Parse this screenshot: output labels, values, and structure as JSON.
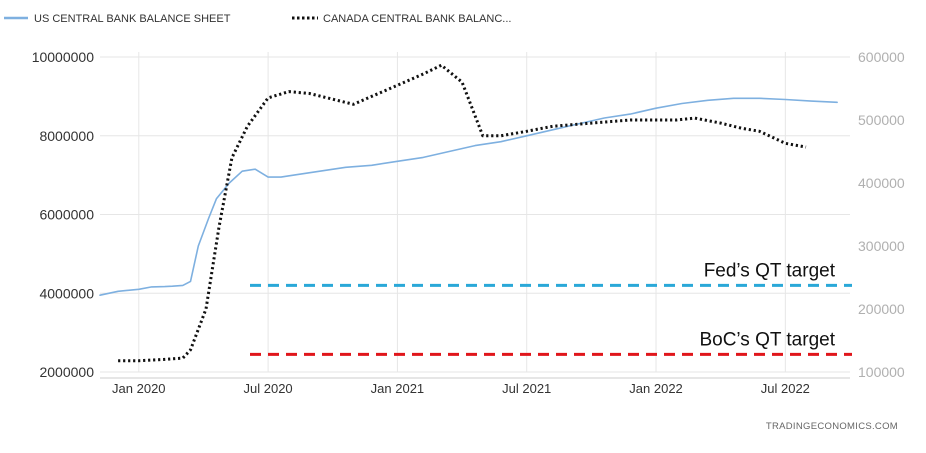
{
  "chart_data": {
    "type": "line",
    "title": "",
    "legend": [
      "US CENTRAL BANK BALANCE SHEET",
      "CANADA CENTRAL BANK BALANC..."
    ],
    "legend_position": "top-left",
    "source": "TRADINGECONOMICS.COM",
    "x_tick_labels": [
      "Jan 2020",
      "Jul 2020",
      "Jan 2021",
      "Jul 2021",
      "Jan 2022",
      "Jul 2022"
    ],
    "x_range": [
      2019.85,
      2022.75
    ],
    "y_left": {
      "ylim": [
        2000000,
        10000000
      ],
      "ticks": [
        "2000000",
        "4000000",
        "6000000",
        "8000000",
        "10000000"
      ]
    },
    "y_right": {
      "ylim": [
        100000,
        600000
      ],
      "ticks": [
        "100000",
        "200000",
        "300000",
        "400000",
        "500000",
        "600000"
      ]
    },
    "grid": true,
    "series": [
      {
        "name": "US CENTRAL BANK BALANCE SHEET",
        "axis": "left",
        "color": "#7eb0e0",
        "style": "solid",
        "x": [
          2019.85,
          2019.92,
          2020.0,
          2020.05,
          2020.1,
          2020.13,
          2020.17,
          2020.2,
          2020.23,
          2020.27,
          2020.3,
          2020.35,
          2020.4,
          2020.45,
          2020.5,
          2020.55,
          2020.6,
          2020.7,
          2020.8,
          2020.9,
          2021.0,
          2021.1,
          2021.2,
          2021.3,
          2021.4,
          2021.5,
          2021.6,
          2021.7,
          2021.8,
          2021.9,
          2022.0,
          2022.1,
          2022.2,
          2022.3,
          2022.4,
          2022.5,
          2022.6,
          2022.7
        ],
        "y": [
          3950000,
          4050000,
          4100000,
          4160000,
          4170000,
          4180000,
          4200000,
          4300000,
          5200000,
          5900000,
          6400000,
          6800000,
          7100000,
          7150000,
          6950000,
          6950000,
          7000000,
          7100000,
          7200000,
          7250000,
          7350000,
          7450000,
          7600000,
          7750000,
          7850000,
          8000000,
          8150000,
          8300000,
          8450000,
          8550000,
          8700000,
          8820000,
          8900000,
          8950000,
          8950000,
          8920000,
          8880000,
          8850000
        ]
      },
      {
        "name": "CANADA CENTRAL BANK BALANC...",
        "axis": "right",
        "color": "#111111",
        "style": "dotted",
        "x": [
          2019.92,
          2020.0,
          2020.1,
          2020.17,
          2020.2,
          2020.26,
          2020.31,
          2020.36,
          2020.42,
          2020.5,
          2020.58,
          2020.66,
          2020.83,
          2021.0,
          2021.1,
          2021.17,
          2021.25,
          2021.33,
          2021.4,
          2021.5,
          2021.6,
          2021.75,
          2021.9,
          2022.0,
          2022.08,
          2022.15,
          2022.25,
          2022.33,
          2022.4,
          2022.5,
          2022.58
        ],
        "y": [
          118000,
          118000,
          120000,
          122000,
          135000,
          200000,
          330000,
          440000,
          490000,
          535000,
          545000,
          542000,
          525000,
          555000,
          573000,
          587000,
          560000,
          475000,
          475000,
          482000,
          490000,
          495000,
          500000,
          500000,
          500000,
          503000,
          495000,
          487000,
          482000,
          463000,
          457000
        ]
      }
    ],
    "annotations": [
      {
        "label": "Fed’s QT target",
        "axis": "left",
        "value": 4200000,
        "color": "#2aa8d8"
      },
      {
        "label": "BoC’s QT target",
        "axis": "right",
        "value": 128000,
        "color": "#e0161b"
      }
    ]
  }
}
